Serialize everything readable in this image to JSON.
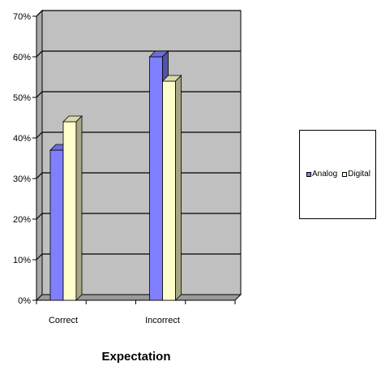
{
  "chart_data": {
    "type": "bar",
    "title": "",
    "xlabel": "Expectation",
    "ylabel": "",
    "categories": [
      "Correct",
      "Incorrect"
    ],
    "series": [
      {
        "name": "Analog",
        "values": [
          37,
          60
        ],
        "color": "#8080ff"
      },
      {
        "name": "Digital",
        "values": [
          44,
          54
        ],
        "color": "#ffffcc"
      }
    ],
    "ylim": [
      0,
      70
    ],
    "yticks": [
      "0%",
      "10%",
      "20%",
      "30%",
      "40%",
      "50%",
      "60%",
      "70%"
    ],
    "grid": true,
    "three_d": true,
    "wall_color": "#c0c0c0",
    "legend_position": "right"
  }
}
